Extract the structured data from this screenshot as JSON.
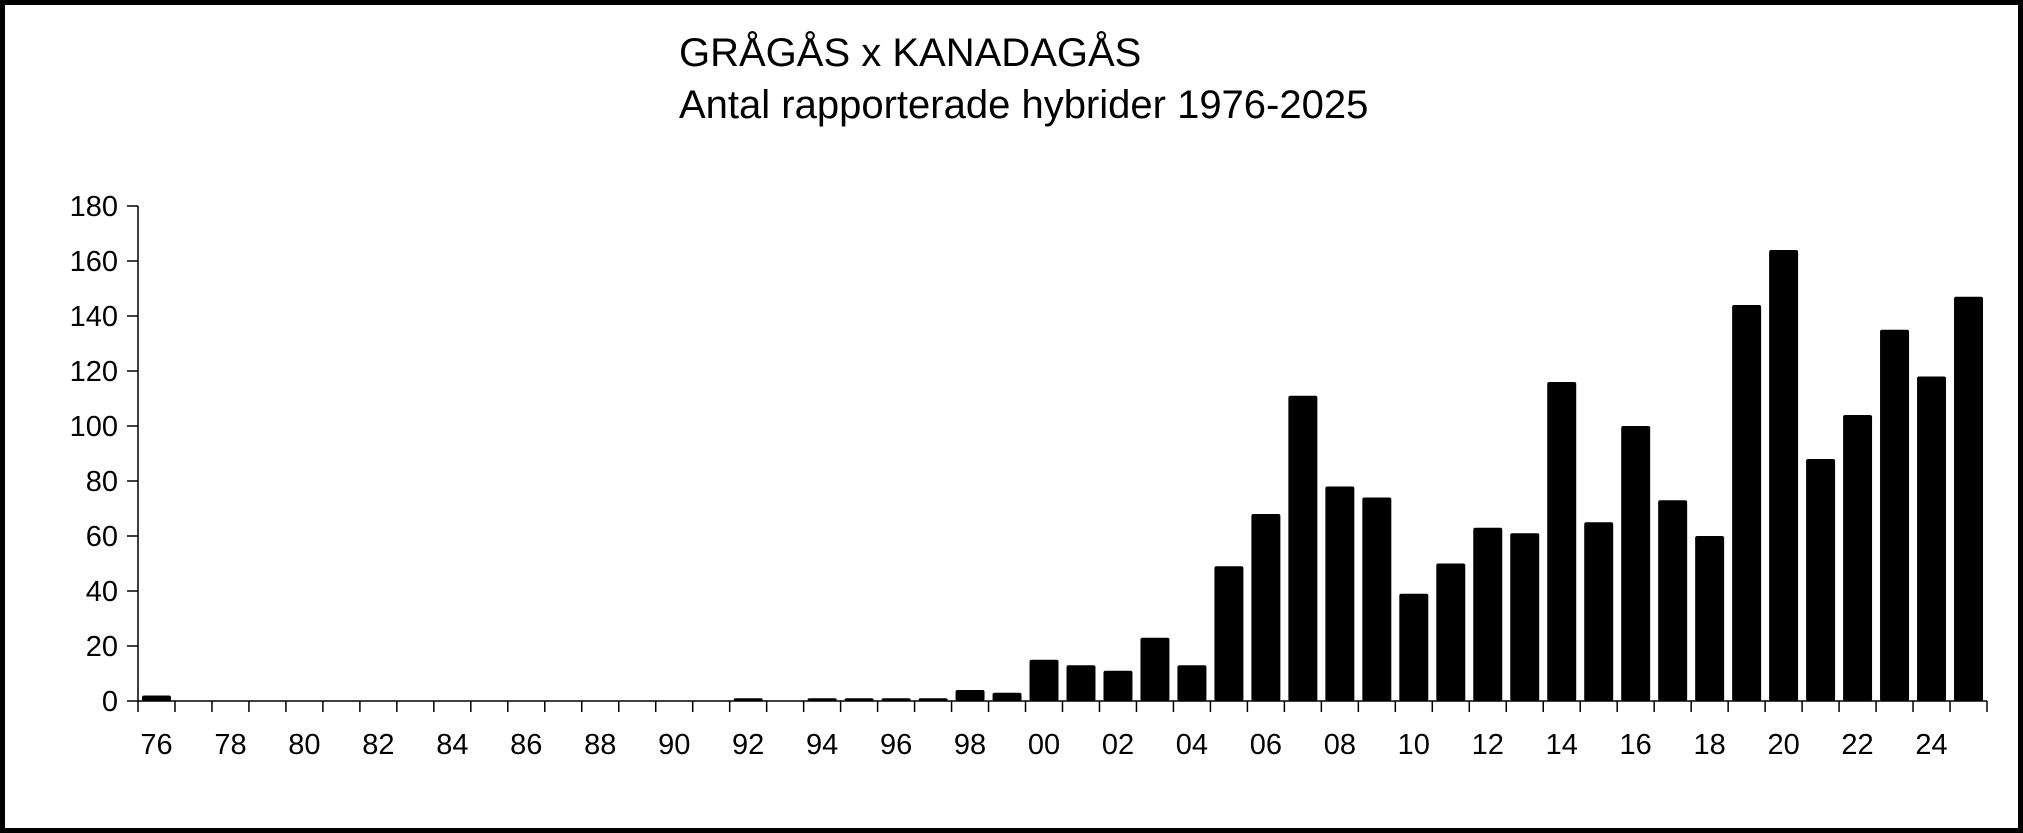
{
  "chart_data": {
    "type": "bar",
    "title": "GRÅGÅS x KANADAGÅS",
    "subtitle": "Antal rapporterade hybrider 1976-2025",
    "xlabel": "",
    "ylabel": "",
    "ylim": [
      0,
      180
    ],
    "yticks": [
      "0",
      "20",
      "40",
      "60",
      "80",
      "100",
      "120",
      "140",
      "160",
      "180"
    ],
    "categories": [
      "76",
      "77",
      "78",
      "79",
      "80",
      "81",
      "82",
      "83",
      "84",
      "85",
      "86",
      "87",
      "88",
      "89",
      "90",
      "91",
      "92",
      "93",
      "94",
      "95",
      "96",
      "97",
      "98",
      "99",
      "00",
      "01",
      "02",
      "03",
      "04",
      "05",
      "06",
      "07",
      "08",
      "09",
      "10",
      "11",
      "12",
      "13",
      "14",
      "15",
      "16",
      "17",
      "18",
      "19",
      "20",
      "21",
      "22",
      "23",
      "24",
      "25"
    ],
    "xtick_labels": [
      "76",
      "78",
      "80",
      "82",
      "84",
      "86",
      "88",
      "90",
      "92",
      "94",
      "96",
      "98",
      "00",
      "02",
      "04",
      "06",
      "08",
      "10",
      "12",
      "14",
      "16",
      "18",
      "20",
      "22",
      "24"
    ],
    "values": [
      2,
      0,
      0,
      0,
      0,
      0,
      0,
      0,
      0,
      0,
      0,
      0,
      0,
      0,
      0,
      0,
      1,
      0,
      1,
      1,
      1,
      1,
      4,
      3,
      15,
      13,
      11,
      23,
      13,
      49,
      68,
      111,
      78,
      74,
      39,
      50,
      63,
      61,
      116,
      65,
      100,
      73,
      60,
      144,
      164,
      88,
      104,
      135,
      118,
      147
    ],
    "bar_color": "#000000",
    "grid": false,
    "legend": "none"
  }
}
